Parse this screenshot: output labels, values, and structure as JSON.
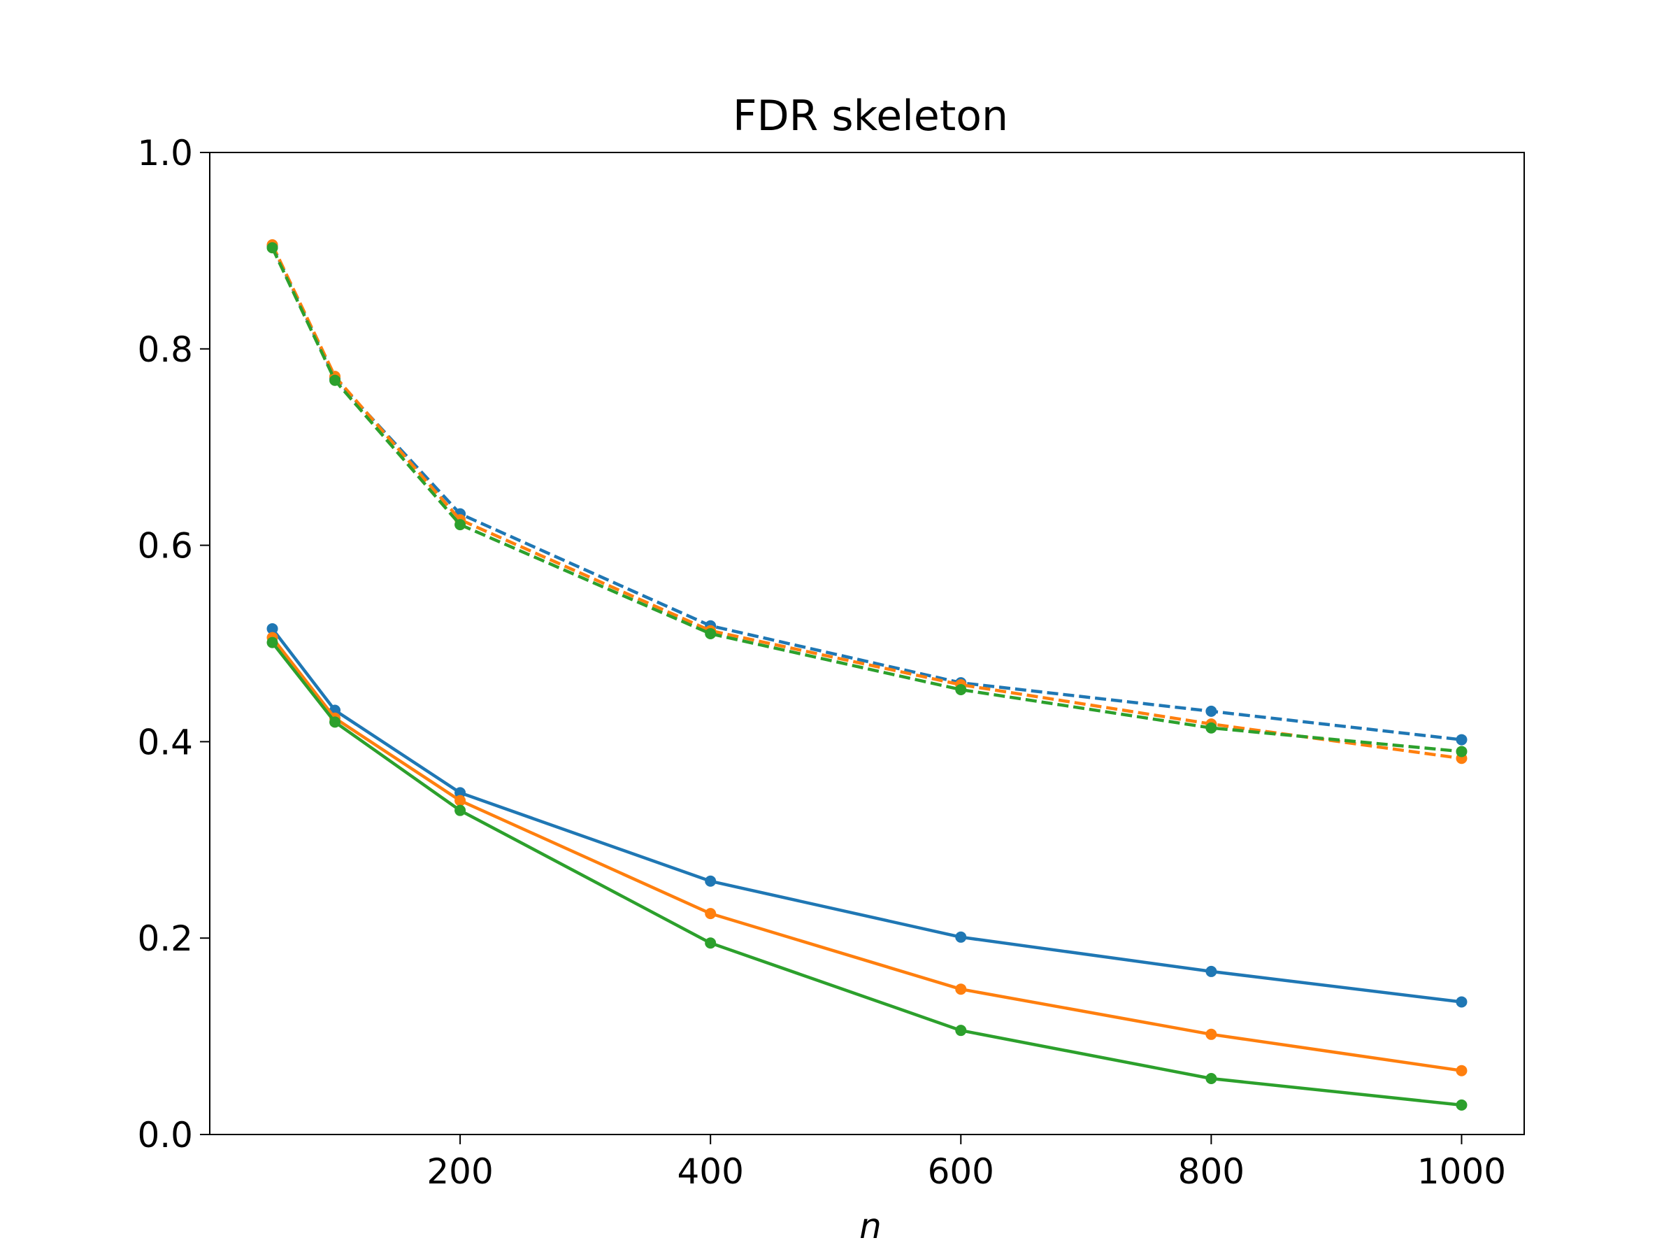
{
  "chart_data": {
    "type": "line",
    "title": "FDR skeleton",
    "xlabel": "n",
    "ylabel": "",
    "xlim": [
      0,
      1050
    ],
    "ylim": [
      0.0,
      1.0
    ],
    "x_ticks": [
      200,
      400,
      600,
      800,
      1000
    ],
    "y_ticks": [
      0.0,
      0.2,
      0.4,
      0.6,
      0.8,
      1.0
    ],
    "x_tick_labels": [
      "200",
      "400",
      "600",
      "800",
      "1000"
    ],
    "y_tick_labels": [
      "0.0",
      "0.2",
      "0.4",
      "0.6",
      "0.8",
      "1.0"
    ],
    "grid": false,
    "x": [
      50,
      100,
      200,
      400,
      600,
      800,
      1000
    ],
    "series": [
      {
        "color": "#1f77b4",
        "linestyle": "dashed",
        "values": [
          0.905,
          0.77,
          0.632,
          0.518,
          0.46,
          0.431,
          0.402
        ]
      },
      {
        "color": "#ff7f0e",
        "linestyle": "dashed",
        "values": [
          0.906,
          0.772,
          0.626,
          0.513,
          0.458,
          0.418,
          0.383
        ]
      },
      {
        "color": "#2ca02c",
        "linestyle": "dashed",
        "values": [
          0.903,
          0.768,
          0.621,
          0.51,
          0.453,
          0.414,
          0.39
        ]
      },
      {
        "color": "#1f77b4",
        "linestyle": "solid",
        "values": [
          0.515,
          0.432,
          0.348,
          0.258,
          0.201,
          0.166,
          0.135
        ]
      },
      {
        "color": "#ff7f0e",
        "linestyle": "solid",
        "values": [
          0.506,
          0.424,
          0.34,
          0.225,
          0.148,
          0.102,
          0.065
        ]
      },
      {
        "color": "#2ca02c",
        "linestyle": "solid",
        "values": [
          0.501,
          0.42,
          0.33,
          0.195,
          0.106,
          0.057,
          0.03
        ]
      }
    ]
  }
}
